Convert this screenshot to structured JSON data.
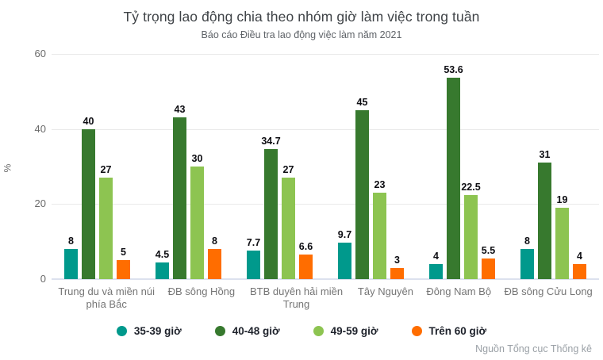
{
  "chart_data": {
    "type": "bar",
    "title": "Tỷ trọng lao động chia theo nhóm giờ làm việc trong tuần",
    "subtitle": "Báo cáo Điều tra lao động việc làm năm 2021",
    "source": "Nguồn Tổng cục Thống kê",
    "categories": [
      "Trung du và miền núi phía Bắc",
      "ĐB sông Hồng",
      "BTB duyên hải miền Trung",
      "Tây Nguyên",
      "Đông Nam Bộ",
      "ĐB sông Cửu Long"
    ],
    "series": [
      {
        "name": "35-39 giờ",
        "color": "#00998c",
        "values": [
          8,
          4.5,
          7.7,
          9.7,
          4,
          8
        ]
      },
      {
        "name": "40-48 giờ",
        "color": "#37792e",
        "values": [
          40,
          43,
          34.7,
          45,
          53.6,
          31
        ]
      },
      {
        "name": "49-59 giờ",
        "color": "#8dc451",
        "values": [
          27,
          30,
          27,
          23,
          22.5,
          19
        ]
      },
      {
        "name": "Trên 60 giờ",
        "color": "#ff6d00",
        "values": [
          5,
          8,
          6.6,
          3,
          5.5,
          4
        ]
      }
    ],
    "xlabel": "",
    "ylabel": "%",
    "ylim": [
      0,
      60
    ],
    "yticks": [
      0,
      20,
      40,
      60
    ],
    "grid": true,
    "legend_position": "bottom"
  },
  "style": {
    "grid_color": "#e9e9e9",
    "baseline_color": "#dce1ee",
    "axis_text_color": "#757575",
    "value_label_color": "#0d0d12"
  }
}
